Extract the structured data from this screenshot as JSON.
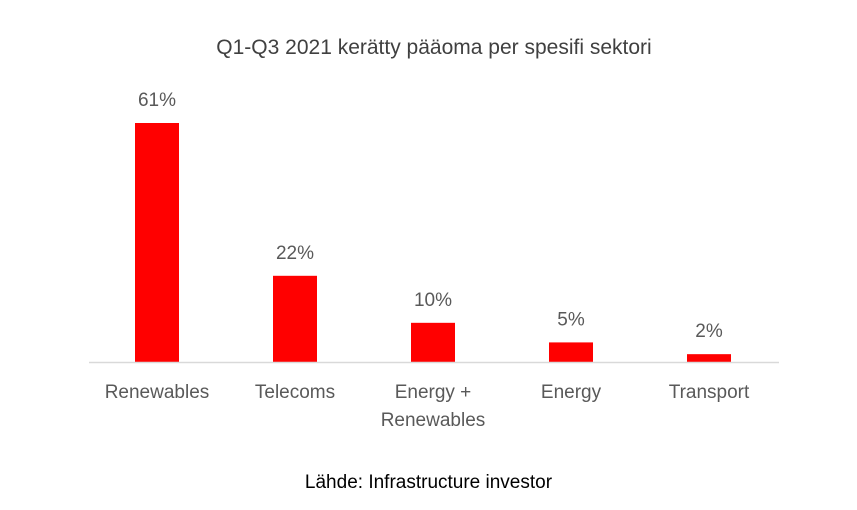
{
  "chart_data": {
    "type": "bar",
    "title": "Q1-Q3 2021 kerätty pääoma per spesifi sektori",
    "categories": [
      [
        "Renewables"
      ],
      [
        "Telecoms"
      ],
      [
        "Energy +",
        "Renewables"
      ],
      [
        "Energy"
      ],
      [
        "Transport"
      ]
    ],
    "values": [
      61,
      22,
      10,
      5,
      2
    ],
    "data_labels": [
      "61%",
      "22%",
      "10%",
      "5%",
      "2%"
    ],
    "unit": "%",
    "ylim": [
      0,
      61
    ],
    "y_axis_visible": false,
    "grid": false,
    "legend": "none",
    "bar_color": "#ff0000",
    "axis_color": "#d9d9d9"
  },
  "source": "Lähde: Infrastructure investor"
}
